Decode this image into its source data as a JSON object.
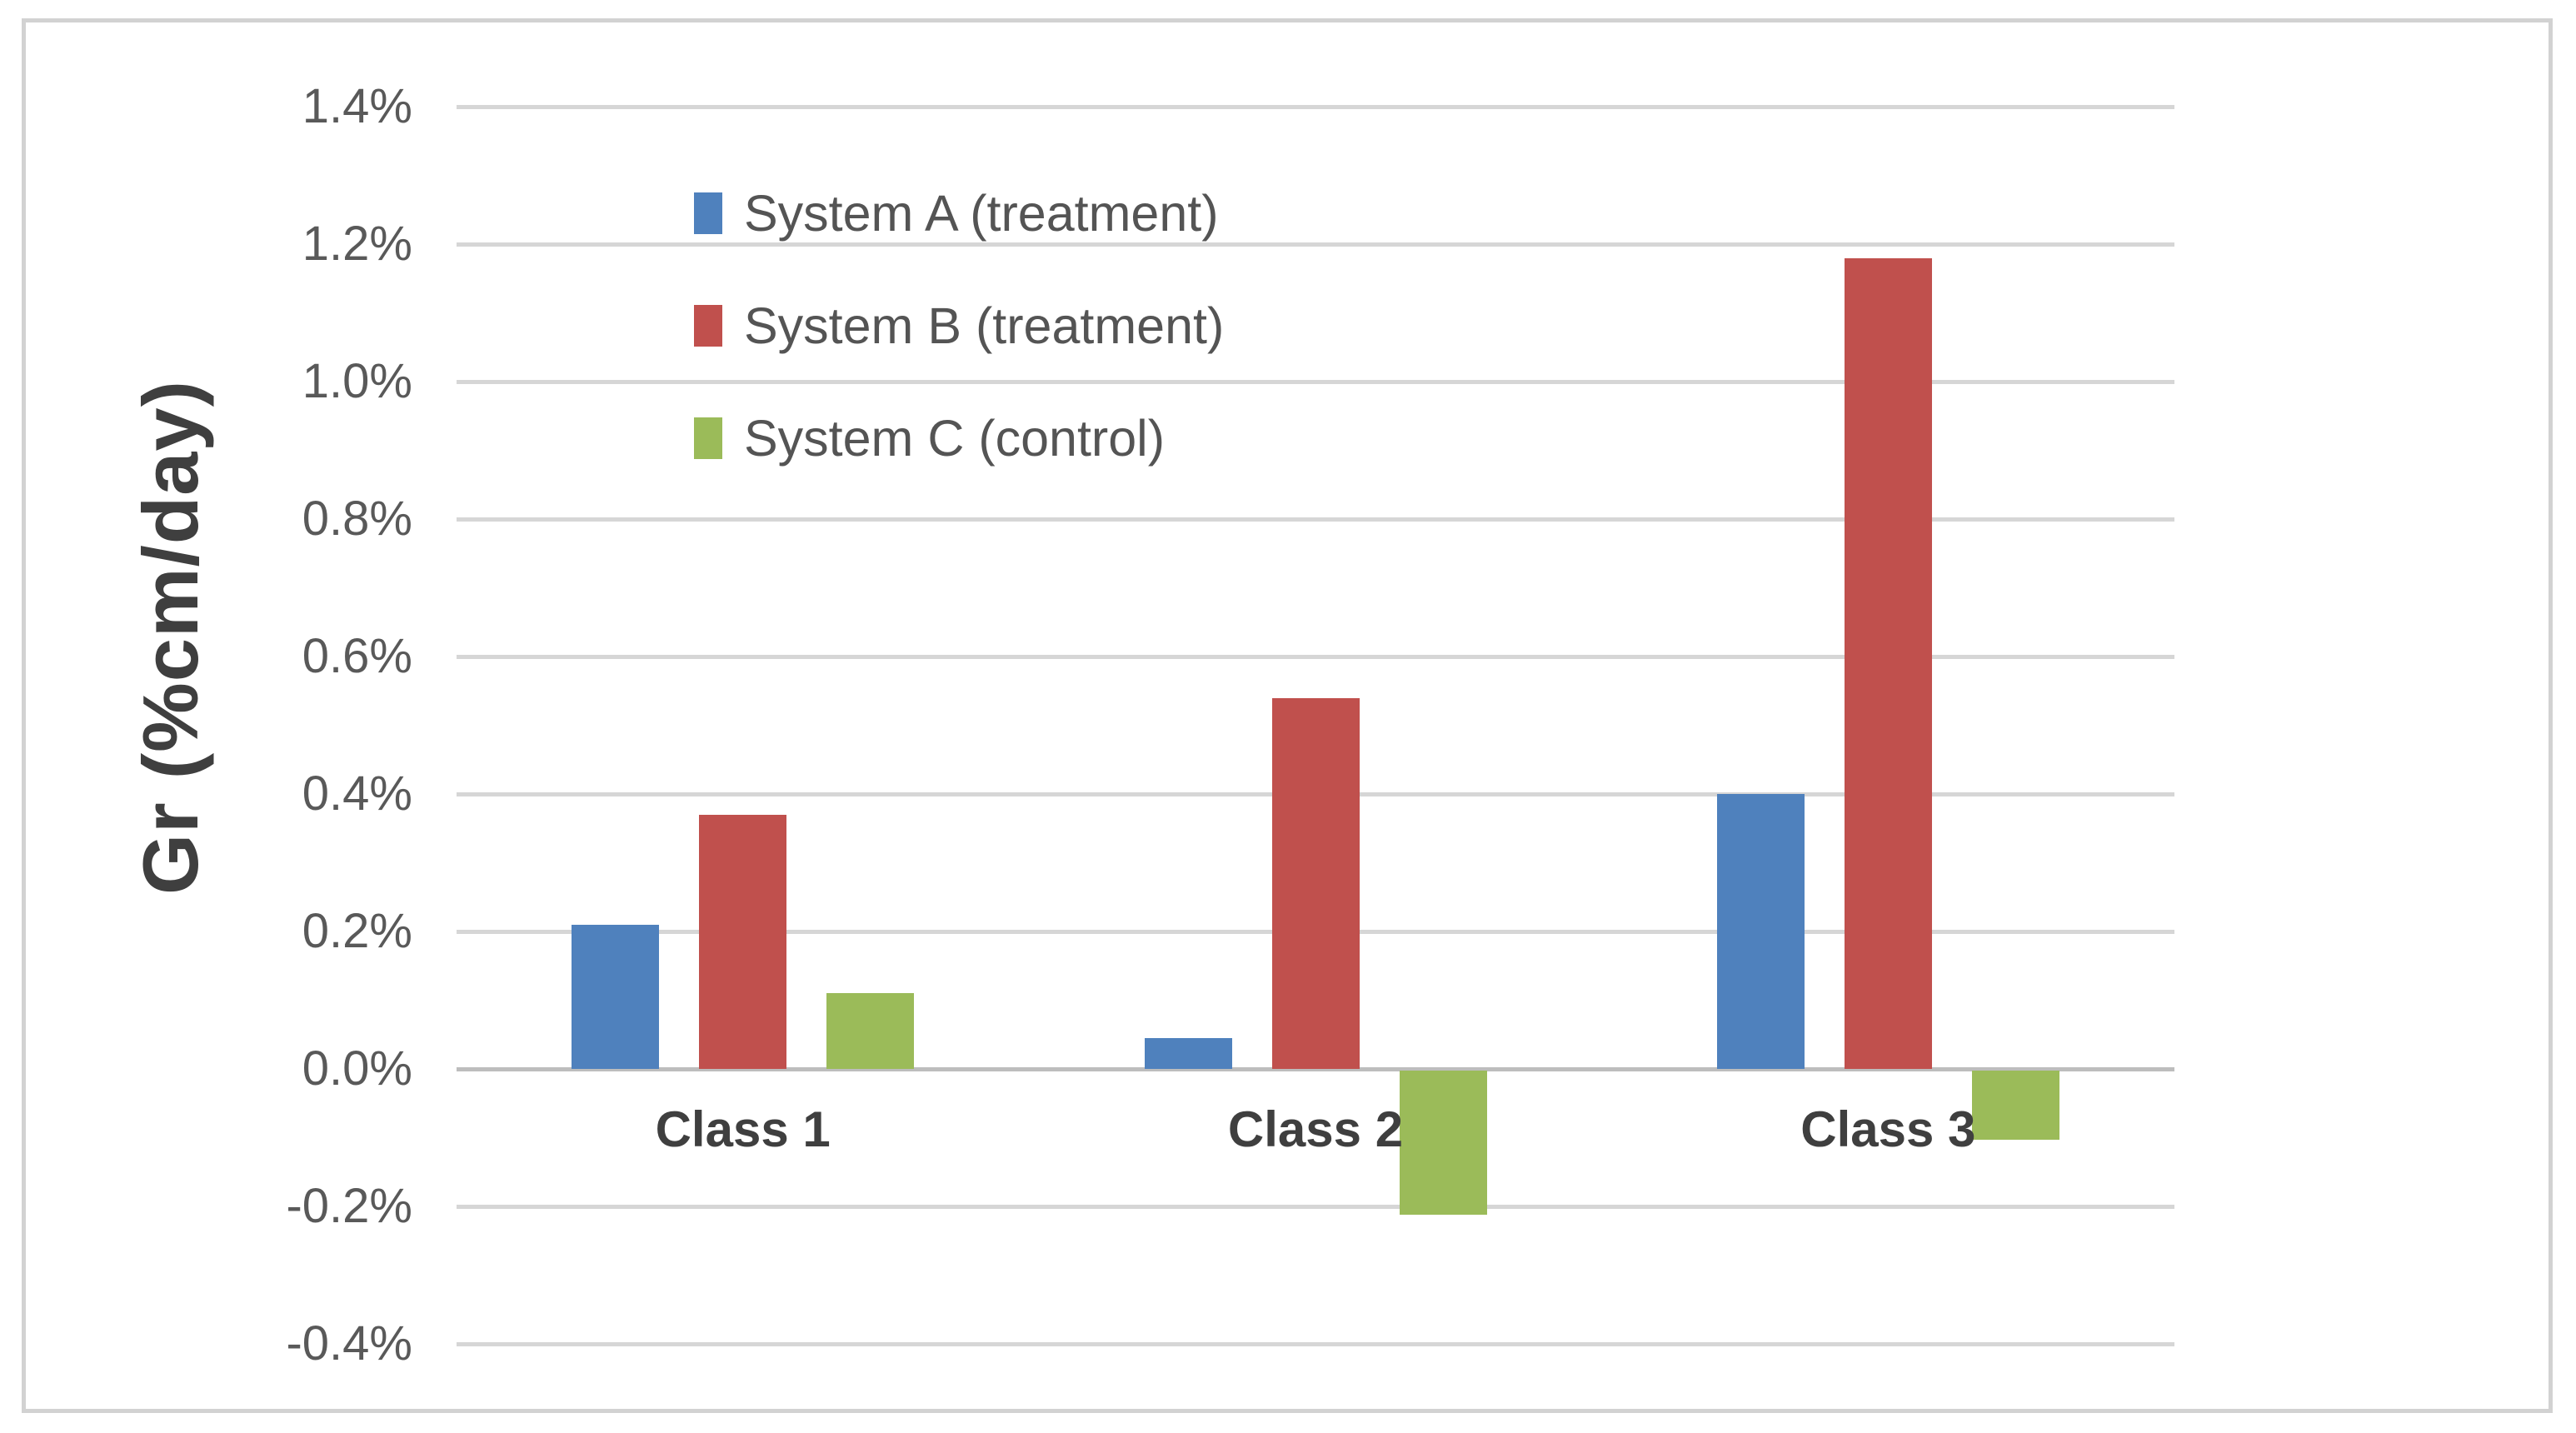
{
  "chart_data": {
    "type": "bar",
    "title": "",
    "xlabel": "",
    "ylabel": "Gr (%cm/day)",
    "categories": [
      "Class 1",
      "Class 2",
      "Class 3"
    ],
    "series": [
      {
        "name": "System A (treatment)",
        "color": "#4F81BD",
        "values": [
          0.21,
          0.045,
          0.4
        ]
      },
      {
        "name": "System B (treatment)",
        "color": "#C0504D",
        "values": [
          0.37,
          0.54,
          1.18
        ]
      },
      {
        "name": "System C (control)",
        "color": "#9BBB59",
        "values": [
          0.11,
          -0.21,
          -0.1
        ]
      }
    ],
    "units": "percent per day",
    "ylim": [
      -0.4,
      1.4
    ],
    "ytick_step": 0.2,
    "tick_labels": [
      "1.4%",
      "1.2%",
      "1.0%",
      "0.8%",
      "0.6%",
      "0.4%",
      "0.2%",
      "0.0%",
      "-0.2%",
      "-0.4%"
    ],
    "grid": true,
    "legend_position": "inside-upper-left",
    "colors": {
      "gridline": "#D6D6D6",
      "zero_line": "#BDBDBD",
      "frame_border": "#D2D2D2",
      "tick_text": "#595959",
      "category_text": "#3F3F3F",
      "axis_title_text": "#3F3F3F",
      "legend_text": "#545454",
      "background": "#FFFFFF"
    }
  }
}
